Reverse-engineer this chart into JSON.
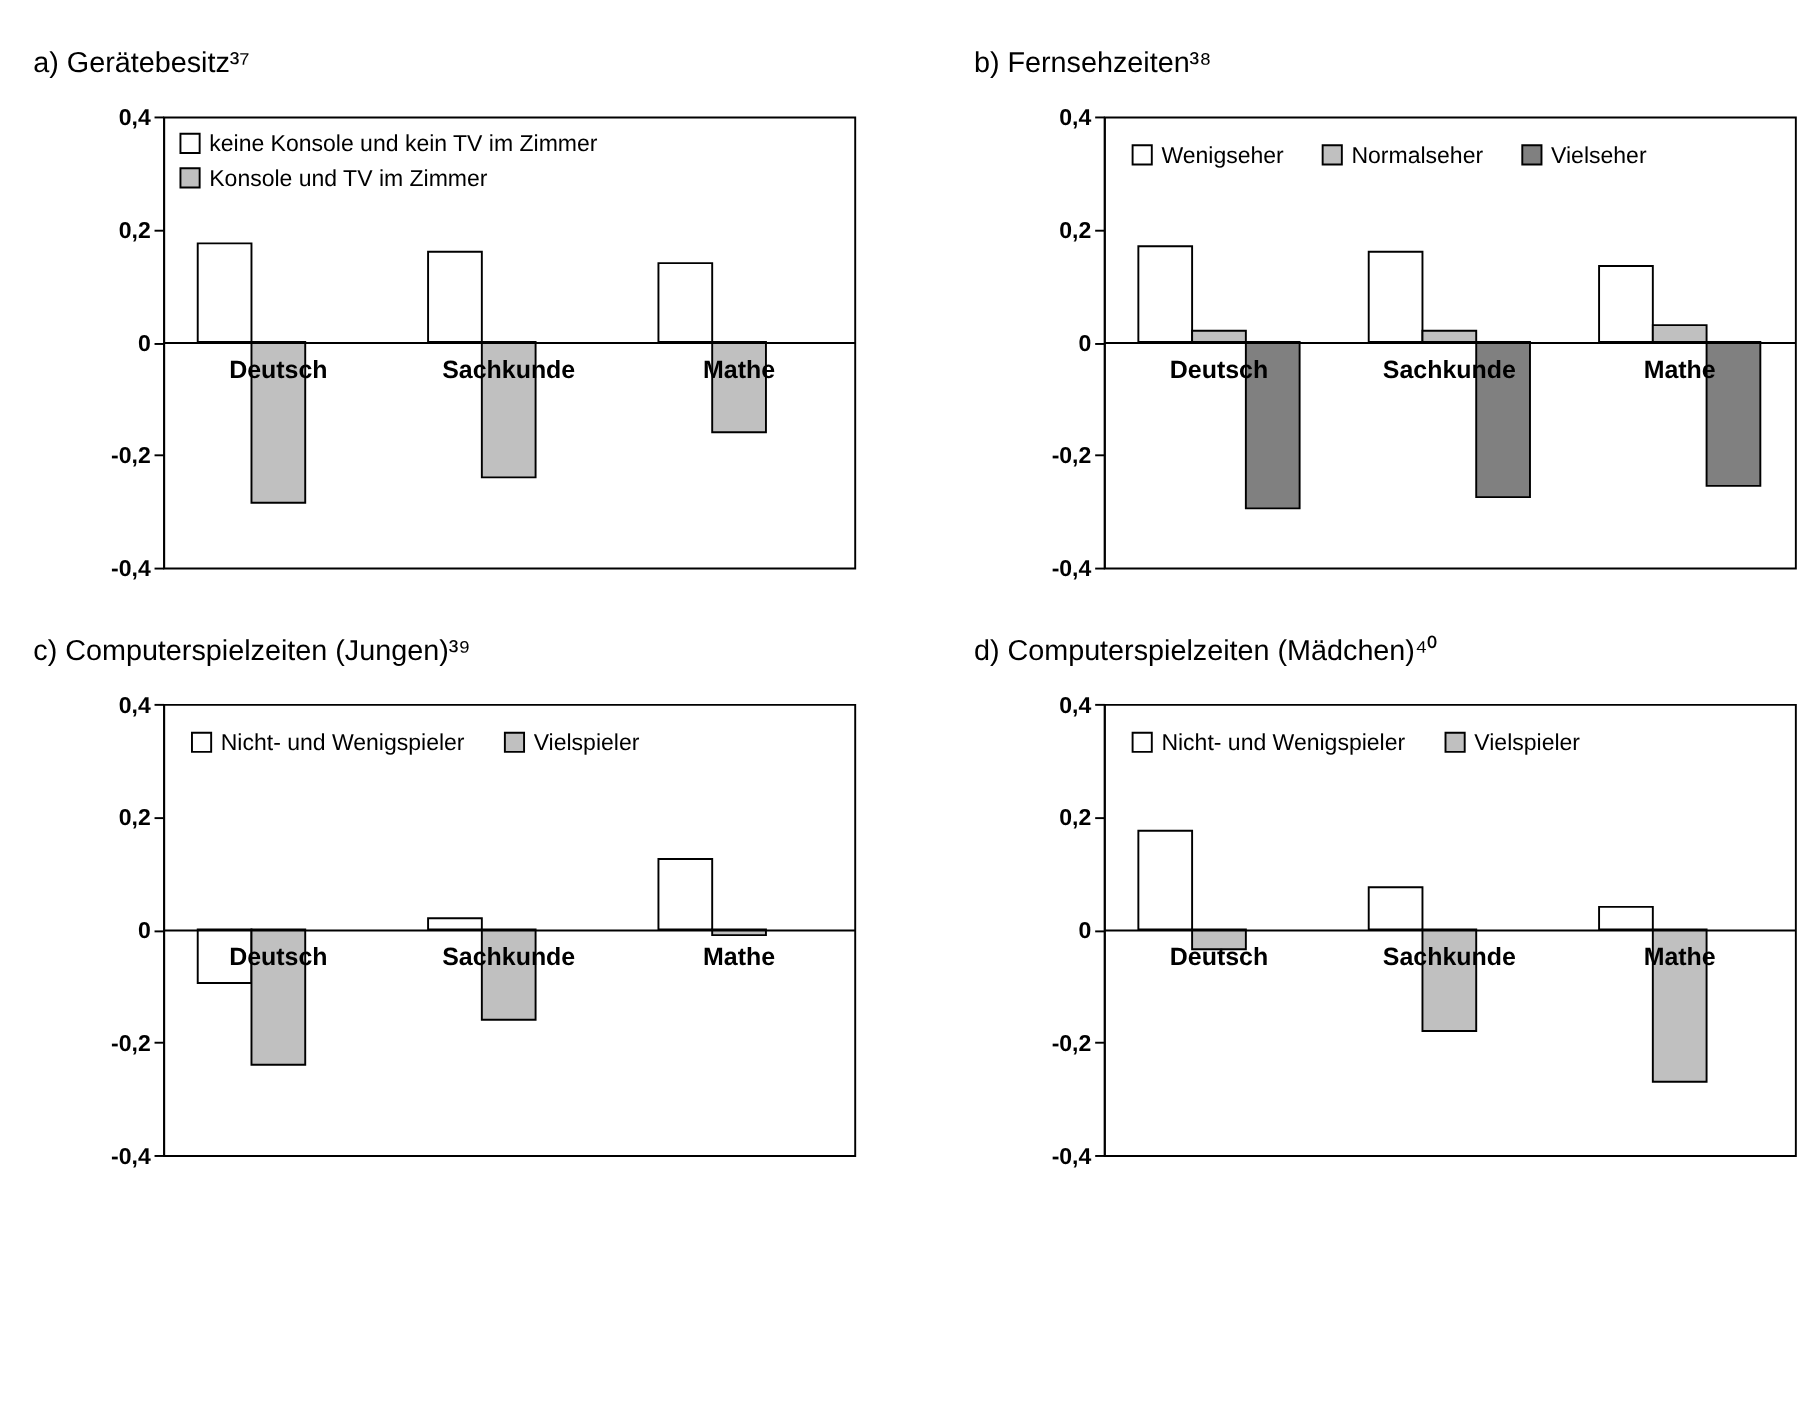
{
  "chart_data": [
    {
      "type": "bar",
      "title": "a) Gerätebesitz³⁷",
      "categories": [
        "Deutsch",
        "Sachkunde",
        "Mathe"
      ],
      "ylim": [
        -0.4,
        0.4
      ],
      "yticks": [
        {
          "value": -0.4,
          "label": "-0,4"
        },
        {
          "value": -0.2,
          "label": "-0,2"
        },
        0,
        {
          "value": 0.2,
          "label": "0,2"
        },
        {
          "value": 0.4,
          "label": "0,4"
        }
      ],
      "grid": false,
      "legend": "top left",
      "series": [
        {
          "name": "keine Konsole und kein TV im Zimmer",
          "color": "#ffffff",
          "values": [
            0.175,
            0.16,
            0.14
          ]
        },
        {
          "name": "Konsole und TV im Zimmer",
          "color": "#c0c0c0",
          "values": [
            -0.285,
            -0.24,
            -0.16
          ]
        }
      ]
    },
    {
      "type": "bar",
      "title": "b) Fernsehzeiten³⁸",
      "categories": [
        "Deutsch",
        "Sachkunde",
        "Mathe"
      ],
      "ylim": [
        -0.4,
        0.4
      ],
      "yticks": [
        {
          "value": -0.4,
          "label": "-0,4"
        },
        {
          "value": -0.2,
          "label": "-0,2"
        },
        0,
        {
          "value": 0.2,
          "label": "0,2"
        },
        {
          "value": 0.4,
          "label": "0,4"
        }
      ],
      "grid": false,
      "legend": "top",
      "series": [
        {
          "name": "Wenigseher",
          "color": "#ffffff",
          "values": [
            0.17,
            0.16,
            0.135
          ]
        },
        {
          "name": "Normalseher",
          "color": "#c0c0c0",
          "values": [
            0.02,
            0.02,
            0.03
          ]
        },
        {
          "name": "Vielseher",
          "color": "#808080",
          "values": [
            -0.295,
            -0.275,
            -0.255
          ]
        }
      ]
    },
    {
      "type": "bar",
      "title": "c) Computerspielzeiten (Jungen)³⁹",
      "categories": [
        "Deutsch",
        "Sachkunde",
        "Mathe"
      ],
      "ylim": [
        -0.4,
        0.4
      ],
      "yticks": [
        {
          "value": -0.4,
          "label": "-0,4"
        },
        {
          "value": -0.2,
          "label": "-0,2"
        },
        0,
        {
          "value": 0.2,
          "label": "0,2"
        },
        {
          "value": 0.4,
          "label": "0,4"
        }
      ],
      "grid": false,
      "legend": "top",
      "series": [
        {
          "name": "Nicht- und Wenigspieler",
          "color": "#ffffff",
          "values": [
            -0.095,
            0.02,
            0.125
          ]
        },
        {
          "name": "Vielspieler",
          "color": "#c0c0c0",
          "values": [
            -0.24,
            -0.16,
            -0.01
          ]
        }
      ]
    },
    {
      "type": "bar",
      "title": "d) Computerspielzeiten (Mädchen)⁴⁰",
      "categories": [
        "Deutsch",
        "Sachkunde",
        "Mathe"
      ],
      "ylim": [
        -0.4,
        0.4
      ],
      "yticks": [
        {
          "value": -0.4,
          "label": "-0,4"
        },
        {
          "value": -0.2,
          "label": "-0,2"
        },
        0,
        {
          "value": 0.2,
          "label": "0,2"
        },
        {
          "value": 0.4,
          "label": "0,4"
        }
      ],
      "grid": false,
      "legend": "top",
      "series": [
        {
          "name": "Nicht- und Wenigspieler",
          "color": "#ffffff",
          "values": [
            0.175,
            0.075,
            0.04
          ]
        },
        {
          "name": "Vielspieler",
          "color": "#c0c0c0",
          "values": [
            -0.035,
            -0.18,
            -0.27
          ]
        }
      ]
    }
  ]
}
